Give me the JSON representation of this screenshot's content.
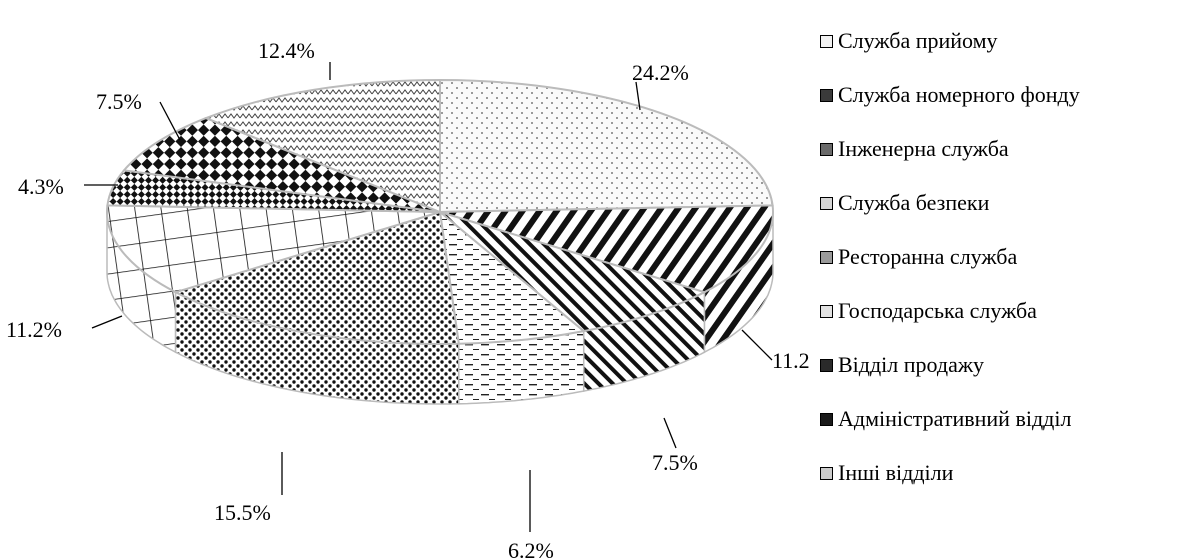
{
  "chart_data": {
    "type": "pie",
    "title": "",
    "legend_position": "right",
    "slices": [
      {
        "name": "Служба прийому",
        "value": 24.2,
        "label": "24.2%",
        "pattern": "dots-sparse",
        "color": "#f2f2f2"
      },
      {
        "name": "Служба номерного фонду",
        "value": 11.2,
        "label": "11.2%",
        "pattern": "diag-thick",
        "color": "#3a3a3a"
      },
      {
        "name": "Інженерна служба",
        "value": 7.5,
        "label": "7.5%",
        "pattern": "diag-thin",
        "color": "#6a6a6a"
      },
      {
        "name": "Служба безпеки",
        "value": 6.2,
        "label": "6.2%",
        "pattern": "dashes",
        "color": "#d6d6d6"
      },
      {
        "name": "Ресторанна служба",
        "value": 15.5,
        "label": "15.5%",
        "pattern": "dots-dense",
        "color": "#9a9a9a"
      },
      {
        "name": "Господарська служба",
        "value": 11.2,
        "label": "11.2%",
        "pattern": "grid",
        "color": "#e2e2e2"
      },
      {
        "name": "Відділ продажу",
        "value": 4.3,
        "label": "4.3%",
        "pattern": "checker-small",
        "color": "#2a2a2a"
      },
      {
        "name": "Адміністративний відділ",
        "value": 7.5,
        "label": "7.5%",
        "pattern": "checker-large",
        "color": "#1a1a1a"
      },
      {
        "name": "Інші відділи",
        "value": 12.4,
        "label": "12.4%",
        "pattern": "zigzag",
        "color": "#cccccc"
      }
    ]
  }
}
